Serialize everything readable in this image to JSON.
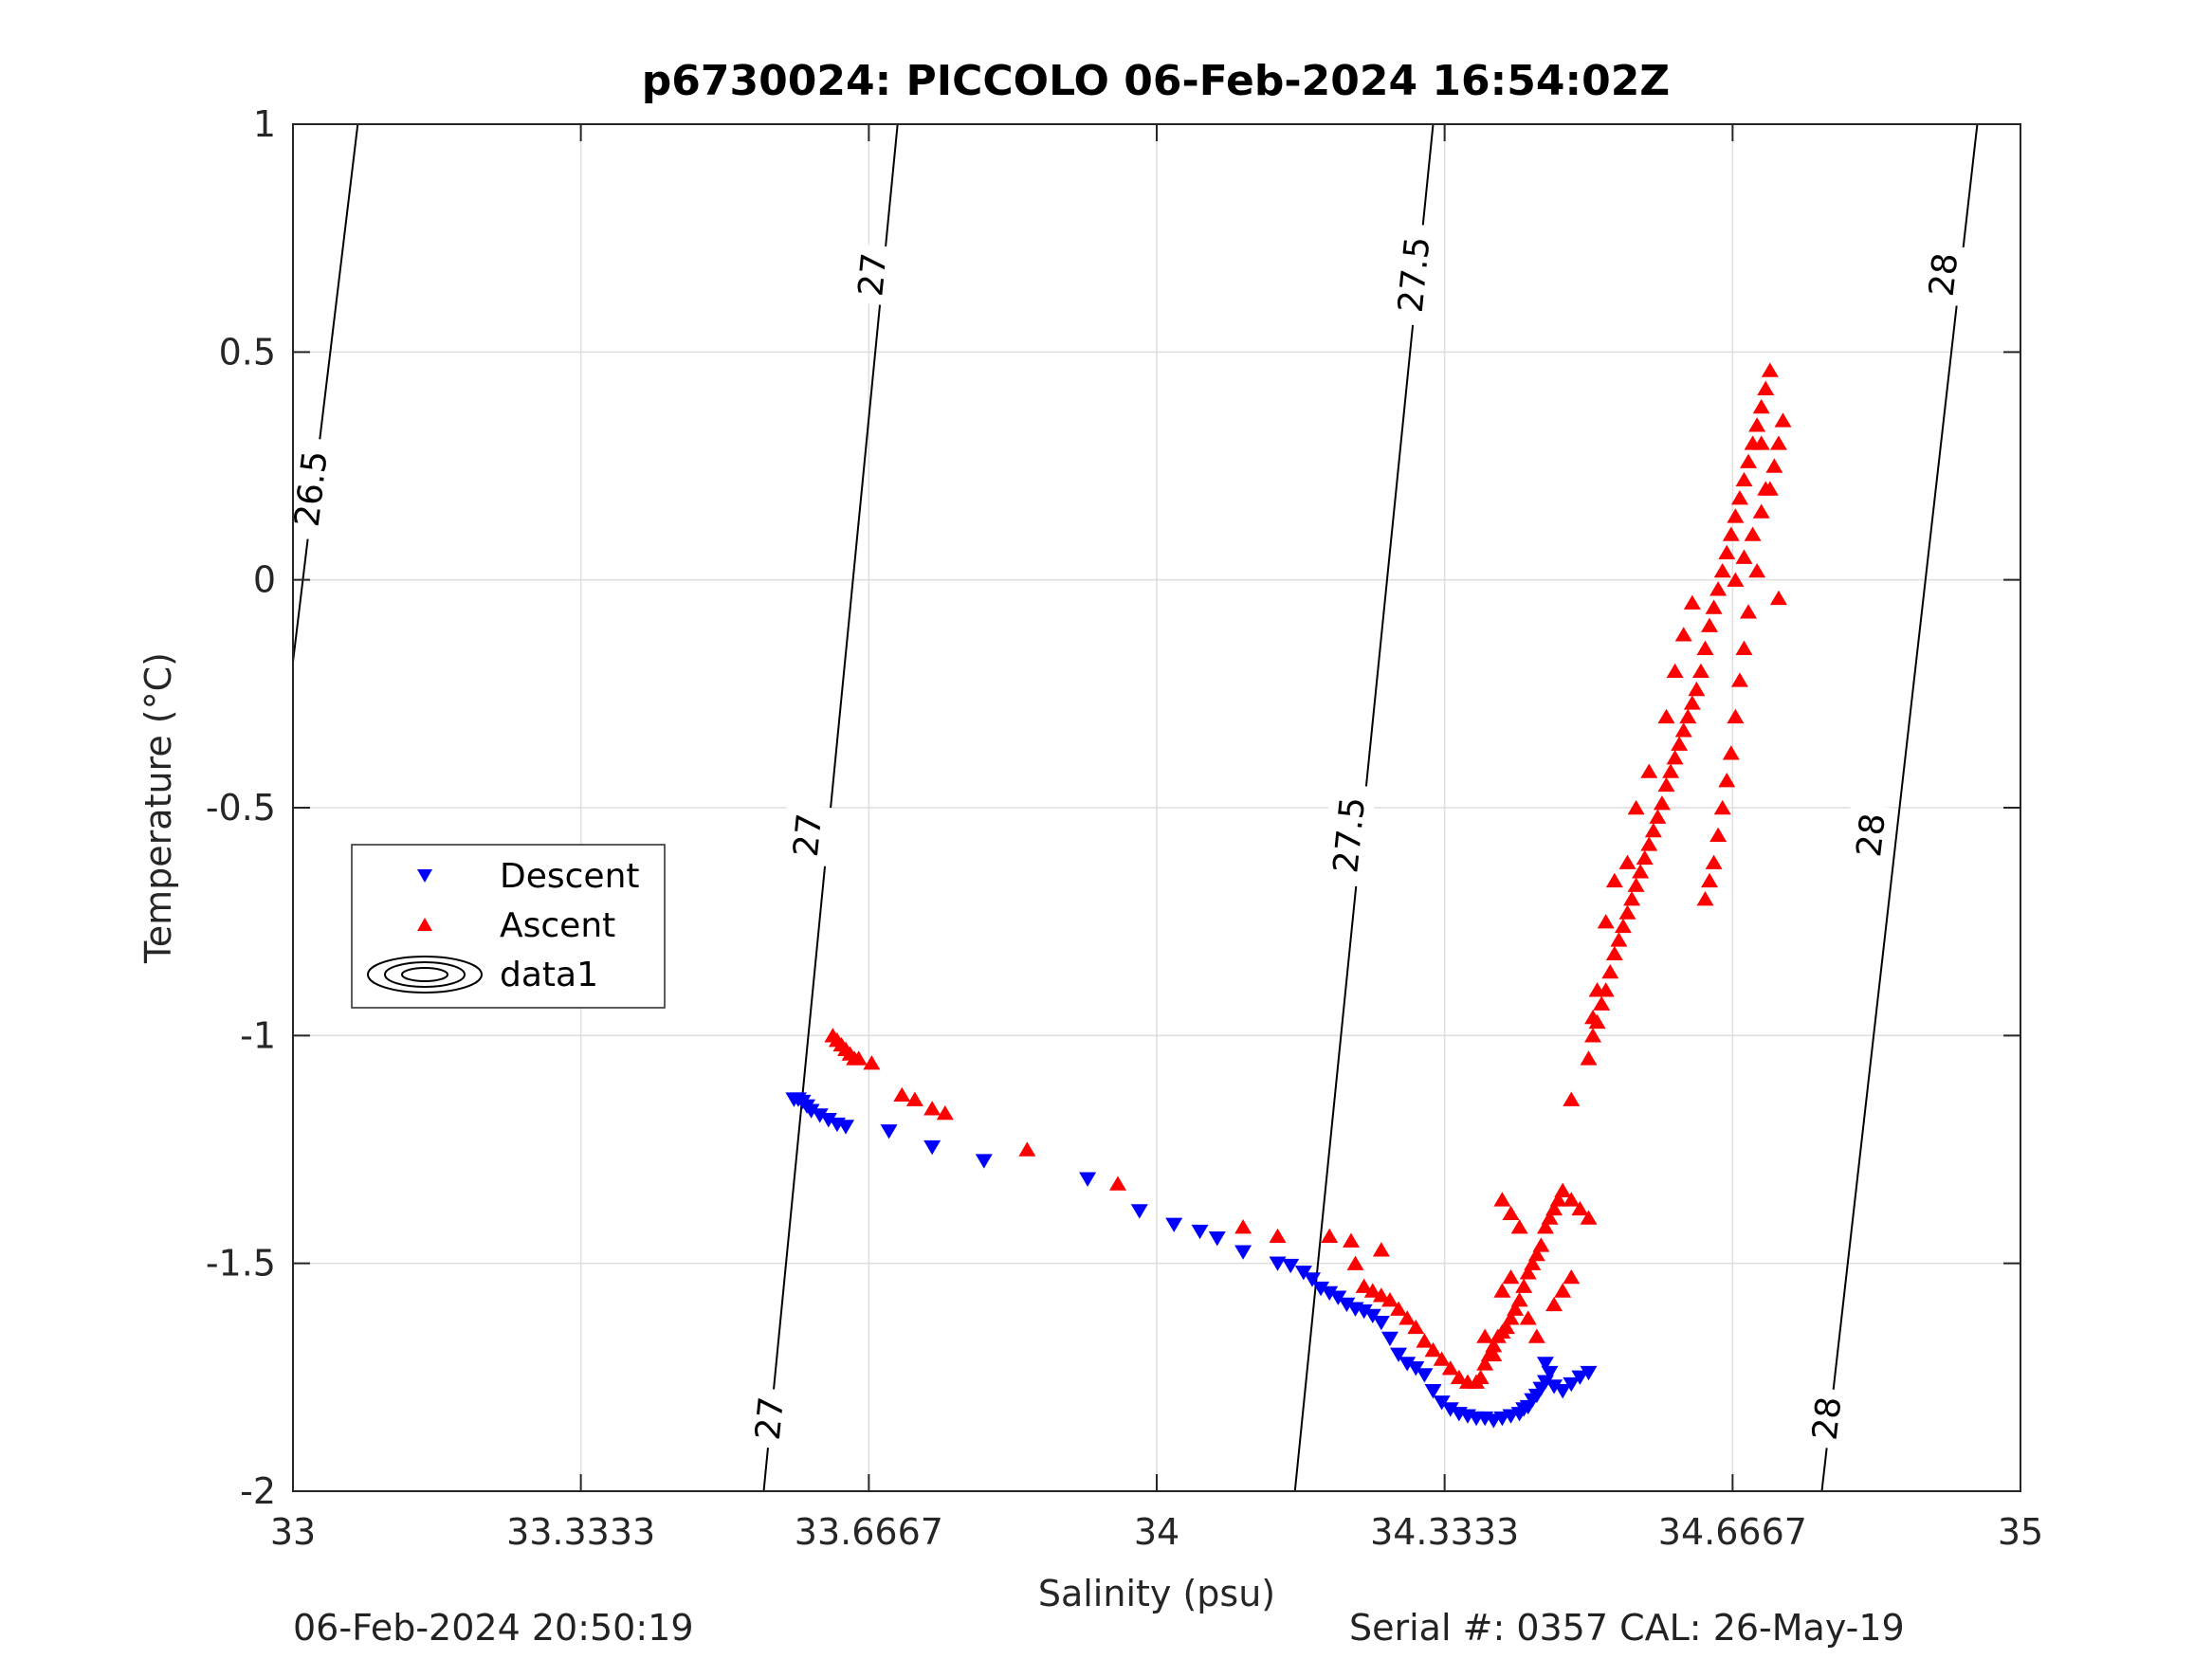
{
  "chart_data": {
    "type": "scatter",
    "title": "p6730024: PICCOLO 06-Feb-2024 16:54:02Z",
    "xlabel": "Salinity (psu)",
    "ylabel": "Temperature (°C)",
    "xlim": [
      33,
      35
    ],
    "ylim": [
      -2,
      1
    ],
    "xticks": [
      33,
      33.3333,
      33.6667,
      34,
      34.3333,
      34.6667,
      35
    ],
    "xtick_labels": [
      "33",
      "33.3333",
      "33.6667",
      "34",
      "34.3333",
      "34.6667",
      "35"
    ],
    "yticks": [
      -2,
      -1.5,
      -1,
      -0.5,
      0,
      0.5,
      1
    ],
    "ytick_labels": [
      "-2",
      "-1.5",
      "-1",
      "-0.5",
      "0",
      "0.5",
      "1"
    ],
    "grid": true,
    "legend_position": "middle-left",
    "legend": [
      "Descent",
      "Ascent",
      "data1"
    ],
    "series": [
      {
        "name": "Descent",
        "marker": "triangle-down",
        "color": "#0000ff",
        "points": [
          [
            33.58,
            -1.14
          ],
          [
            33.585,
            -1.14
          ],
          [
            33.59,
            -1.145
          ],
          [
            33.595,
            -1.155
          ],
          [
            33.6,
            -1.165
          ],
          [
            33.61,
            -1.175
          ],
          [
            33.62,
            -1.185
          ],
          [
            33.63,
            -1.195
          ],
          [
            33.64,
            -1.2
          ],
          [
            33.69,
            -1.21
          ],
          [
            33.74,
            -1.245
          ],
          [
            33.8,
            -1.275
          ],
          [
            33.92,
            -1.315
          ],
          [
            33.98,
            -1.385
          ],
          [
            34.02,
            -1.415
          ],
          [
            34.05,
            -1.43
          ],
          [
            34.07,
            -1.445
          ],
          [
            34.1,
            -1.475
          ],
          [
            34.14,
            -1.5
          ],
          [
            34.155,
            -1.505
          ],
          [
            34.17,
            -1.52
          ],
          [
            34.18,
            -1.535
          ],
          [
            34.19,
            -1.555
          ],
          [
            34.2,
            -1.565
          ],
          [
            34.21,
            -1.575
          ],
          [
            34.22,
            -1.59
          ],
          [
            34.23,
            -1.6
          ],
          [
            34.24,
            -1.605
          ],
          [
            34.25,
            -1.615
          ],
          [
            34.26,
            -1.63
          ],
          [
            34.27,
            -1.665
          ],
          [
            34.28,
            -1.7
          ],
          [
            34.29,
            -1.72
          ],
          [
            34.3,
            -1.73
          ],
          [
            34.31,
            -1.745
          ],
          [
            34.32,
            -1.78
          ],
          [
            34.33,
            -1.805
          ],
          [
            34.34,
            -1.82
          ],
          [
            34.35,
            -1.83
          ],
          [
            34.36,
            -1.835
          ],
          [
            34.37,
            -1.84
          ],
          [
            34.38,
            -1.84
          ],
          [
            34.39,
            -1.845
          ],
          [
            34.4,
            -1.84
          ],
          [
            34.41,
            -1.835
          ],
          [
            34.42,
            -1.83
          ],
          [
            34.425,
            -1.82
          ],
          [
            34.43,
            -1.815
          ],
          [
            34.435,
            -1.8
          ],
          [
            34.44,
            -1.79
          ],
          [
            34.445,
            -1.775
          ],
          [
            34.45,
            -1.76
          ],
          [
            34.455,
            -1.74
          ],
          [
            34.45,
            -1.72
          ],
          [
            34.46,
            -1.77
          ],
          [
            34.47,
            -1.78
          ],
          [
            34.48,
            -1.765
          ],
          [
            34.49,
            -1.75
          ],
          [
            34.5,
            -1.74
          ]
        ]
      },
      {
        "name": "Ascent",
        "marker": "triangle-up",
        "color": "#ff0000",
        "points": [
          [
            33.625,
            -1.0
          ],
          [
            33.63,
            -1.01
          ],
          [
            33.635,
            -1.02
          ],
          [
            33.64,
            -1.03
          ],
          [
            33.645,
            -1.04
          ],
          [
            33.65,
            -1.05
          ],
          [
            33.655,
            -1.05
          ],
          [
            33.67,
            -1.06
          ],
          [
            33.705,
            -1.13
          ],
          [
            33.72,
            -1.14
          ],
          [
            33.74,
            -1.16
          ],
          [
            33.755,
            -1.17
          ],
          [
            33.85,
            -1.25
          ],
          [
            33.955,
            -1.325
          ],
          [
            34.1,
            -1.42
          ],
          [
            34.14,
            -1.44
          ],
          [
            34.2,
            -1.44
          ],
          [
            34.225,
            -1.45
          ],
          [
            34.26,
            -1.47
          ],
          [
            34.23,
            -1.5
          ],
          [
            34.24,
            -1.55
          ],
          [
            34.25,
            -1.56
          ],
          [
            34.26,
            -1.57
          ],
          [
            34.27,
            -1.58
          ],
          [
            34.28,
            -1.6
          ],
          [
            34.29,
            -1.62
          ],
          [
            34.3,
            -1.64
          ],
          [
            34.31,
            -1.67
          ],
          [
            34.32,
            -1.69
          ],
          [
            34.33,
            -1.71
          ],
          [
            34.34,
            -1.73
          ],
          [
            34.35,
            -1.75
          ],
          [
            34.36,
            -1.76
          ],
          [
            34.37,
            -1.76
          ],
          [
            34.375,
            -1.75
          ],
          [
            34.38,
            -1.72
          ],
          [
            34.385,
            -1.7
          ],
          [
            34.39,
            -1.68
          ],
          [
            34.395,
            -1.66
          ],
          [
            34.4,
            -1.65
          ],
          [
            34.405,
            -1.64
          ],
          [
            34.41,
            -1.62
          ],
          [
            34.415,
            -1.6
          ],
          [
            34.42,
            -1.58
          ],
          [
            34.425,
            -1.55
          ],
          [
            34.43,
            -1.52
          ],
          [
            34.435,
            -1.5
          ],
          [
            34.44,
            -1.48
          ],
          [
            34.445,
            -1.46
          ],
          [
            34.45,
            -1.42
          ],
          [
            34.455,
            -1.4
          ],
          [
            34.46,
            -1.38
          ],
          [
            34.465,
            -1.36
          ],
          [
            34.47,
            -1.34
          ],
          [
            34.48,
            -1.36
          ],
          [
            34.49,
            -1.38
          ],
          [
            34.5,
            -1.4
          ],
          [
            34.4,
            -1.36
          ],
          [
            34.41,
            -1.39
          ],
          [
            34.42,
            -1.42
          ],
          [
            34.38,
            -1.66
          ],
          [
            34.39,
            -1.7
          ],
          [
            34.4,
            -1.56
          ],
          [
            34.41,
            -1.53
          ],
          [
            34.43,
            -1.62
          ],
          [
            34.44,
            -1.66
          ],
          [
            34.46,
            -1.59
          ],
          [
            34.47,
            -1.56
          ],
          [
            34.48,
            -1.53
          ],
          [
            34.48,
            -1.14
          ],
          [
            34.5,
            -1.05
          ],
          [
            34.505,
            -1.0
          ],
          [
            34.51,
            -0.97
          ],
          [
            34.515,
            -0.93
          ],
          [
            34.52,
            -0.9
          ],
          [
            34.525,
            -0.86
          ],
          [
            34.53,
            -0.82
          ],
          [
            34.535,
            -0.79
          ],
          [
            34.54,
            -0.76
          ],
          [
            34.545,
            -0.73
          ],
          [
            34.55,
            -0.7
          ],
          [
            34.555,
            -0.67
          ],
          [
            34.56,
            -0.64
          ],
          [
            34.565,
            -0.61
          ],
          [
            34.57,
            -0.58
          ],
          [
            34.575,
            -0.55
          ],
          [
            34.58,
            -0.52
          ],
          [
            34.585,
            -0.49
          ],
          [
            34.59,
            -0.45
          ],
          [
            34.595,
            -0.42
          ],
          [
            34.6,
            -0.39
          ],
          [
            34.605,
            -0.36
          ],
          [
            34.61,
            -0.33
          ],
          [
            34.615,
            -0.3
          ],
          [
            34.62,
            -0.27
          ],
          [
            34.625,
            -0.24
          ],
          [
            34.63,
            -0.2
          ],
          [
            34.635,
            -0.15
          ],
          [
            34.64,
            -0.1
          ],
          [
            34.645,
            -0.06
          ],
          [
            34.65,
            -0.02
          ],
          [
            34.655,
            0.02
          ],
          [
            34.66,
            0.06
          ],
          [
            34.665,
            0.1
          ],
          [
            34.67,
            0.14
          ],
          [
            34.675,
            0.18
          ],
          [
            34.68,
            0.22
          ],
          [
            34.685,
            0.26
          ],
          [
            34.69,
            0.3
          ],
          [
            34.695,
            0.34
          ],
          [
            34.7,
            0.38
          ],
          [
            34.705,
            0.42
          ],
          [
            34.71,
            0.46
          ],
          [
            34.67,
            0.0
          ],
          [
            34.68,
            0.05
          ],
          [
            34.69,
            0.1
          ],
          [
            34.7,
            0.15
          ],
          [
            34.71,
            0.2
          ],
          [
            34.715,
            0.25
          ],
          [
            34.72,
            0.3
          ],
          [
            34.725,
            0.35
          ],
          [
            34.705,
            0.2
          ],
          [
            34.7,
            0.3
          ],
          [
            34.695,
            0.02
          ],
          [
            34.685,
            -0.07
          ],
          [
            34.68,
            -0.15
          ],
          [
            34.675,
            -0.22
          ],
          [
            34.67,
            -0.3
          ],
          [
            34.665,
            -0.38
          ],
          [
            34.66,
            -0.44
          ],
          [
            34.655,
            -0.5
          ],
          [
            34.65,
            -0.56
          ],
          [
            34.645,
            -0.62
          ],
          [
            34.64,
            -0.66
          ],
          [
            34.635,
            -0.7
          ],
          [
            34.72,
            -0.04
          ],
          [
            34.62,
            -0.05
          ],
          [
            34.61,
            -0.12
          ],
          [
            34.6,
            -0.2
          ],
          [
            34.59,
            -0.3
          ],
          [
            34.57,
            -0.42
          ],
          [
            34.555,
            -0.5
          ],
          [
            34.545,
            -0.62
          ],
          [
            34.53,
            -0.66
          ],
          [
            34.52,
            -0.75
          ],
          [
            34.51,
            -0.9
          ],
          [
            34.505,
            -0.96
          ]
        ]
      }
    ],
    "density_contours": [
      {
        "label": "26.5",
        "points": [
          [
            33.0,
            -0.18
          ],
          [
            33.075,
            1.0
          ]
        ]
      },
      {
        "label": "27",
        "points": [
          [
            33.545,
            -2.0
          ],
          [
            33.7,
            1.0
          ]
        ]
      },
      {
        "label": "27.5",
        "points": [
          [
            34.16,
            -2.0
          ],
          [
            34.32,
            1.0
          ]
        ]
      },
      {
        "label": "28",
        "points": [
          [
            34.77,
            -2.0
          ],
          [
            34.95,
            1.0
          ]
        ]
      }
    ],
    "density_label_positions": [
      {
        "label": "26.5",
        "at": [
          33.02,
          0.2
        ]
      },
      {
        "label": "27",
        "at": [
          33.67,
          0.67
        ]
      },
      {
        "label": "27",
        "at": [
          33.595,
          -0.56
        ]
      },
      {
        "label": "27",
        "at": [
          33.551,
          -1.84
        ]
      },
      {
        "label": "27.5",
        "at": [
          34.297,
          0.67
        ]
      },
      {
        "label": "27.5",
        "at": [
          34.222,
          -0.56
        ]
      },
      {
        "label": "28",
        "at": [
          34.91,
          0.67
        ]
      },
      {
        "label": "28",
        "at": [
          34.826,
          -0.56
        ]
      },
      {
        "label": "28",
        "at": [
          34.775,
          -1.84
        ]
      }
    ]
  },
  "footer": {
    "timestamp": "06-Feb-2024 20:50:19",
    "serial": "Serial #: 0357  CAL: 26-May-19"
  }
}
